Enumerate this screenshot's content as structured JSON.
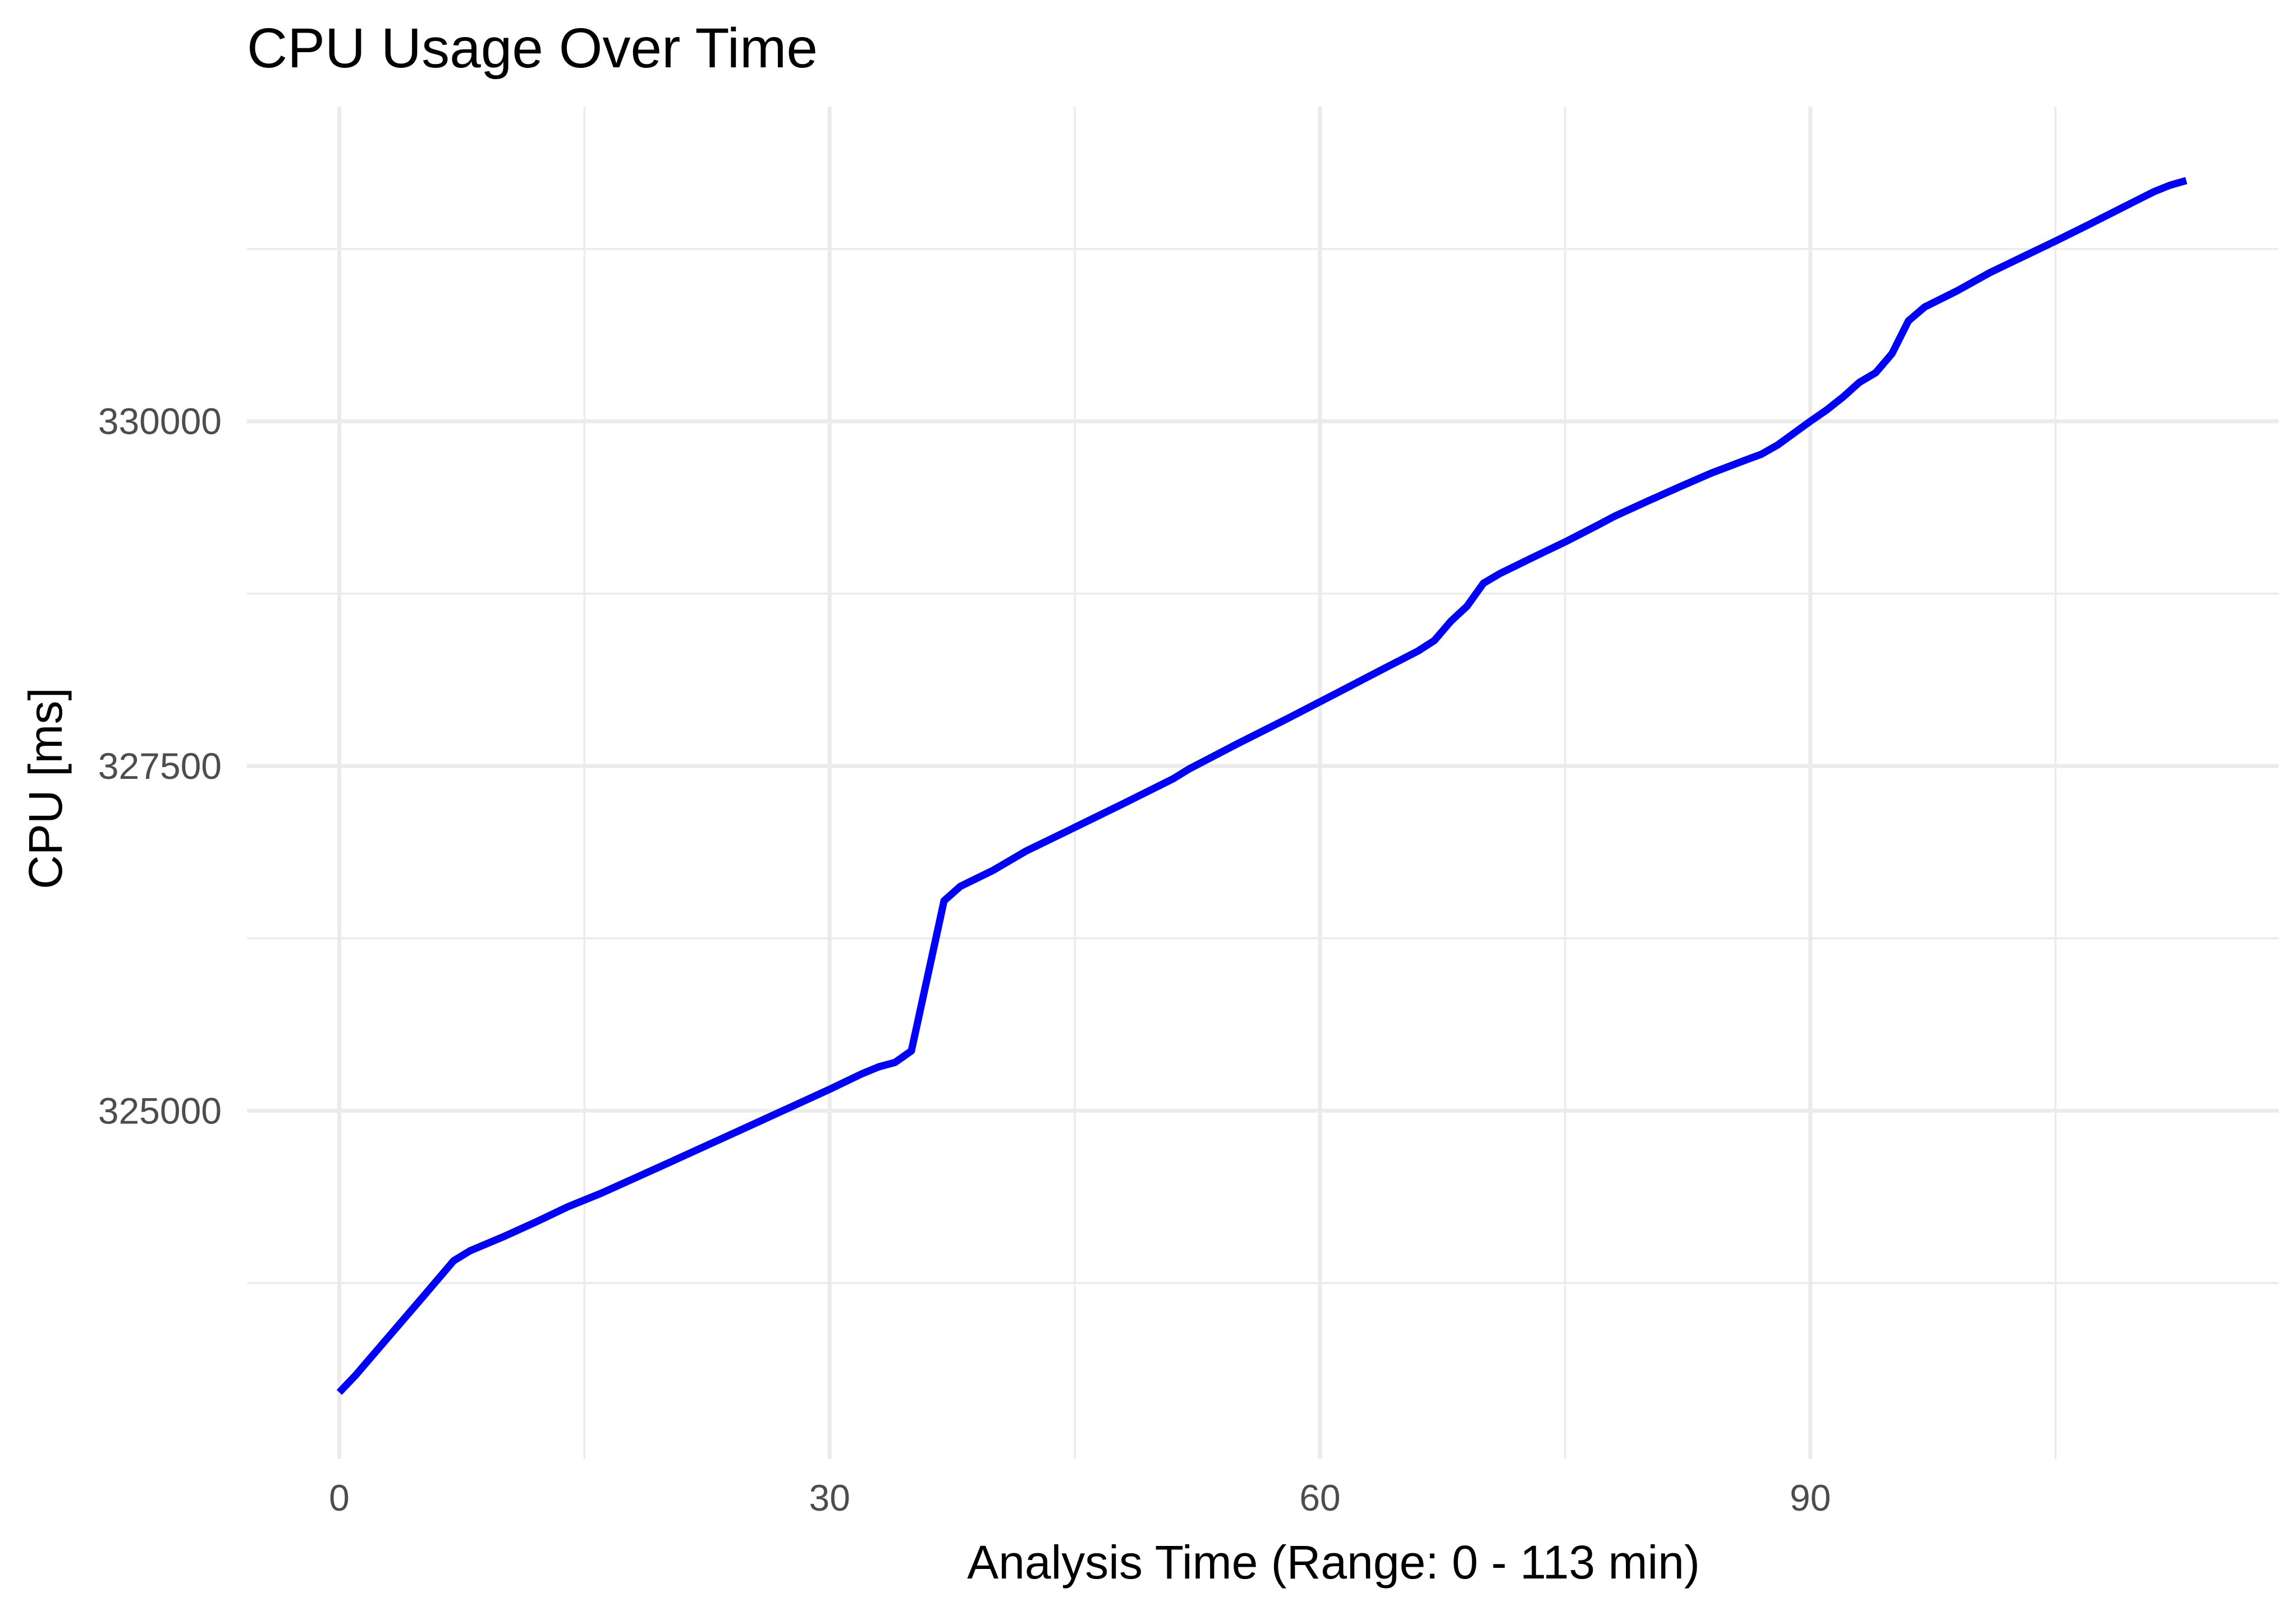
{
  "chart_data": {
    "type": "line",
    "title": "CPU Usage Over Time",
    "xlabel": "Analysis Time (Range: 0 - 113  min)",
    "ylabel": "CPU [ms]",
    "xlim": [
      -5.65,
      118.65
    ],
    "ylim": [
      322474,
      332282
    ],
    "x_ticks": [
      0,
      30,
      60,
      90
    ],
    "x_tick_labels": [
      "0",
      "30",
      "60",
      "90"
    ],
    "x_minor": [
      15,
      45,
      75,
      105
    ],
    "y_ticks": [
      325000,
      327500,
      330000
    ],
    "y_tick_labels": [
      "325000",
      "327500",
      "330000"
    ],
    "y_minor": [
      323750,
      326250,
      328750,
      331250
    ],
    "grid": true,
    "legend": "none",
    "series": [
      {
        "color": "#0000ff",
        "x": [
          0,
          1,
          3,
          5,
          7,
          8,
          10,
          12,
          14,
          16,
          20,
          25,
          30,
          32,
          33,
          34,
          35,
          36,
          37,
          38,
          40,
          42,
          45,
          48,
          51,
          52,
          55,
          58,
          61,
          64,
          66,
          67,
          68,
          69,
          70,
          71,
          73,
          75,
          77,
          78,
          80,
          82,
          84,
          86,
          87,
          88,
          90,
          91,
          92,
          93,
          94,
          95,
          96,
          97,
          99,
          101,
          103,
          105,
          107,
          109,
          111,
          112,
          113
        ],
        "y": [
          322957,
          323082,
          323358,
          323634,
          323912,
          323984,
          324084,
          324191,
          324304,
          324400,
          324614,
          324884,
          325155,
          325269,
          325318,
          325350,
          325434,
          325978,
          326522,
          326627,
          326743,
          326882,
          327055,
          327229,
          327406,
          327479,
          327664,
          327843,
          328027,
          328212,
          328334,
          328410,
          328549,
          328659,
          328825,
          328895,
          329011,
          329125,
          329247,
          329310,
          329418,
          329524,
          329627,
          329717,
          329761,
          329828,
          330000,
          330082,
          330176,
          330282,
          330352,
          330491,
          330728,
          330829,
          330947,
          331079,
          331193,
          331307,
          331424,
          331544,
          331664,
          331712,
          331746
        ]
      }
    ]
  }
}
